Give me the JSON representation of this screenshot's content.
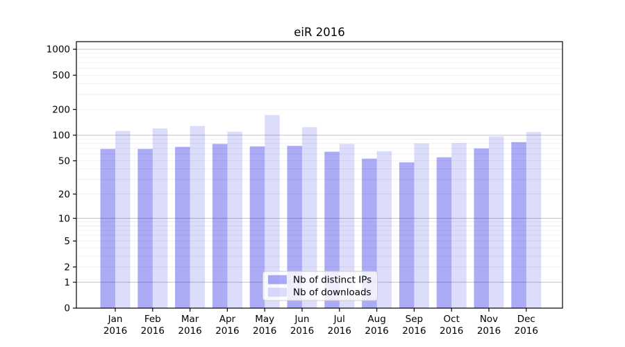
{
  "title": "eiR 2016",
  "legend": {
    "items": [
      {
        "label": "Nb of distinct IPs",
        "series_key": "ips"
      },
      {
        "label": "Nb of downloads",
        "series_key": "downloads"
      }
    ]
  },
  "colors": {
    "ips_bar": "rgba(10,10,230,0.34)",
    "downloads_bar": "rgba(10,10,230,0.14)",
    "major_grid": "#c3c3c3",
    "minor_grid": "#efefef",
    "axis": "#000000",
    "legend_border": "#cccccc",
    "legend_bg": "#ffffff"
  },
  "chart_data": {
    "type": "bar",
    "title": "eiR 2016",
    "categories": [
      "Jan",
      "Feb",
      "Mar",
      "Apr",
      "May",
      "Jun",
      "Jul",
      "Aug",
      "Sep",
      "Oct",
      "Nov",
      "Dec"
    ],
    "category_year": "2016",
    "series": [
      {
        "name": "Nb of distinct IPs",
        "values": [
          69,
          69,
          73,
          79,
          74,
          75,
          64,
          53,
          48,
          55,
          70,
          83
        ]
      },
      {
        "name": "Nb of downloads",
        "values": [
          112,
          120,
          128,
          110,
          172,
          124,
          79,
          65,
          80,
          81,
          97,
          109
        ]
      }
    ],
    "yscale": "log1p",
    "yticks": [
      0,
      1,
      2,
      5,
      10,
      20,
      50,
      100,
      200,
      500,
      1000
    ],
    "major_grid_values": [
      1,
      10,
      100,
      1000
    ],
    "ylim": [
      0,
      1230
    ],
    "xlabel": "",
    "ylabel": "",
    "grid": "on",
    "legend_position": "lower center"
  }
}
